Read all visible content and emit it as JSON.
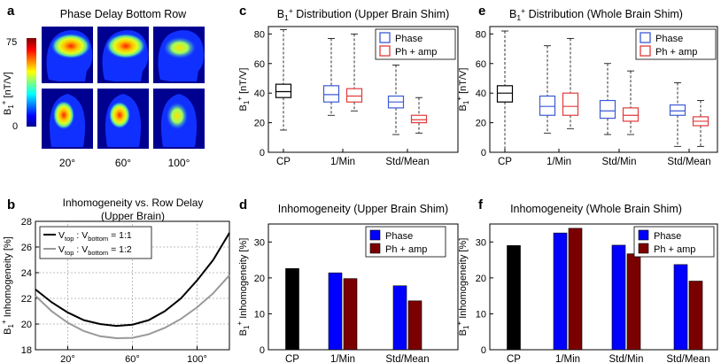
{
  "panel_letters": [
    "a",
    "b",
    "c",
    "d",
    "e",
    "f"
  ],
  "colors": {
    "cp": "#000000",
    "phase": "#0000ff",
    "ph_amp": "#7a0000",
    "box_phase": "#3b5bd6",
    "box_ph_amp": "#e23a3a",
    "curve_1_1": "#000000",
    "curve_1_2": "#999999",
    "grid": "#aaaaaa"
  },
  "panel_a": {
    "title": "Phase Delay Bottom Row",
    "colorbar": {
      "max_label": "75",
      "min_label": "0",
      "label_main": "B",
      "label_sub": "1",
      "label_sup": "+",
      "label_unit": " [nT/V]"
    },
    "columns": [
      "20°",
      "60°",
      "100°"
    ]
  },
  "chart_data": [
    {
      "id": "b",
      "type": "line",
      "title": "Inhomogeneity vs. Row Delay",
      "subtitle": "(Upper Brain)",
      "ylabel": {
        "main": "B",
        "sub": "1",
        "sup": "+",
        "rest": " Inhomogeneity [%]"
      },
      "xlim": [
        0,
        120
      ],
      "ylim": [
        18,
        28
      ],
      "xticks": [
        20,
        60,
        100
      ],
      "xticklabels": [
        "20°",
        "60°",
        "100°"
      ],
      "yticks": [
        18,
        20,
        22,
        24,
        26,
        28
      ],
      "grid": true,
      "legend": [
        {
          "v": "V",
          "top": "top",
          "sep": " : V",
          "bottom": "bottom",
          "ratio": " = 1:1",
          "color": "#000000"
        },
        {
          "v": "V",
          "top": "top",
          "sep": " : V",
          "bottom": "bottom",
          "ratio": " = 1:2",
          "color": "#999999"
        }
      ],
      "series": [
        {
          "name": "1:1",
          "x": [
            0,
            10,
            20,
            30,
            40,
            50,
            60,
            70,
            80,
            90,
            100,
            110,
            120
          ],
          "y": [
            22.7,
            21.7,
            20.9,
            20.3,
            20.0,
            19.85,
            19.95,
            20.3,
            21.0,
            22.0,
            23.4,
            25.0,
            27.1
          ]
        },
        {
          "name": "1:2",
          "x": [
            0,
            10,
            20,
            30,
            40,
            50,
            60,
            70,
            80,
            90,
            100,
            110,
            120
          ],
          "y": [
            22.2,
            21.0,
            20.1,
            19.45,
            19.05,
            18.9,
            18.92,
            19.2,
            19.7,
            20.4,
            21.3,
            22.4,
            23.8
          ]
        }
      ]
    },
    {
      "id": "c",
      "type": "box",
      "title": {
        "main": "B",
        "sub": "1",
        "sup": "+",
        "rest": " Distribution (Upper Brain Shim)"
      },
      "ylabel": {
        "main": "B",
        "sub": "1",
        "sup": "+",
        "rest": " [nT/V]"
      },
      "ylim": [
        0,
        85
      ],
      "yticks": [
        0,
        20,
        40,
        60,
        80
      ],
      "categories": [
        "CP",
        "1/Min",
        "Std/Mean"
      ],
      "legend": [
        "Phase",
        "Ph + amp"
      ],
      "boxes": [
        {
          "group": 0,
          "series": "cp",
          "whisker_low": 15,
          "q1": 37,
          "median": 41,
          "q3": 46,
          "whisker_high": 83
        },
        {
          "group": 1,
          "series": "phase",
          "whisker_low": 25,
          "q1": 34,
          "median": 39,
          "q3": 45,
          "whisker_high": 77
        },
        {
          "group": 1,
          "series": "ph_amp",
          "whisker_low": 28,
          "q1": 34,
          "median": 38,
          "q3": 43,
          "whisker_high": 80
        },
        {
          "group": 2,
          "series": "phase",
          "whisker_low": 12,
          "q1": 30,
          "median": 34,
          "q3": 38,
          "whisker_high": 59
        },
        {
          "group": 2,
          "series": "ph_amp",
          "whisker_low": 13,
          "q1": 20,
          "median": 22,
          "q3": 25,
          "whisker_high": 37
        }
      ]
    },
    {
      "id": "d",
      "type": "bar",
      "title": "Inhomogeneity (Upper Brain Shim)",
      "ylabel": {
        "main": "B",
        "sub": "1",
        "sup": "+",
        "rest": " Inhomogeneity [%]"
      },
      "ylim": [
        0,
        35
      ],
      "yticks": [
        0,
        10,
        20,
        30
      ],
      "categories": [
        "CP",
        "1/Min",
        "Std/Mean"
      ],
      "legend": [
        "Phase",
        "Ph + amp"
      ],
      "bars": [
        {
          "group": 0,
          "series": "cp",
          "value": 22.6
        },
        {
          "group": 1,
          "series": "phase",
          "value": 21.4
        },
        {
          "group": 1,
          "series": "ph_amp",
          "value": 19.8
        },
        {
          "group": 2,
          "series": "phase",
          "value": 17.8
        },
        {
          "group": 2,
          "series": "ph_amp",
          "value": 13.6
        }
      ]
    },
    {
      "id": "e",
      "type": "box",
      "title": {
        "main": "B",
        "sub": "1",
        "sup": "+",
        "rest": " Distribution (Whole Brain Shim)"
      },
      "ylabel": {
        "main": "B",
        "sub": "1",
        "sup": "+",
        "rest": " [nT/V]"
      },
      "ylim": [
        0,
        85
      ],
      "yticks": [
        0,
        20,
        40,
        60,
        80
      ],
      "categories": [
        "CP",
        "1/Min",
        "Std/Min",
        "Std/Mean"
      ],
      "legend": [
        "Phase",
        "Ph + amp"
      ],
      "boxes": [
        {
          "group": 0,
          "series": "cp",
          "whisker_low": 0,
          "q1": 34,
          "median": 40,
          "q3": 45,
          "whisker_high": 82
        },
        {
          "group": 1,
          "series": "phase",
          "whisker_low": 13,
          "q1": 25,
          "median": 31,
          "q3": 38,
          "whisker_high": 72
        },
        {
          "group": 1,
          "series": "ph_amp",
          "whisker_low": 16,
          "q1": 25,
          "median": 31,
          "q3": 40,
          "whisker_high": 77
        },
        {
          "group": 2,
          "series": "phase",
          "whisker_low": 12,
          "q1": 23,
          "median": 28,
          "q3": 35,
          "whisker_high": 60
        },
        {
          "group": 2,
          "series": "ph_amp",
          "whisker_low": 12,
          "q1": 21,
          "median": 25,
          "q3": 30,
          "whisker_high": 55
        },
        {
          "group": 3,
          "series": "phase",
          "whisker_low": 4,
          "q1": 25,
          "median": 28,
          "q3": 32,
          "whisker_high": 47
        },
        {
          "group": 3,
          "series": "ph_amp",
          "whisker_low": 4,
          "q1": 18,
          "median": 21,
          "q3": 24,
          "whisker_high": 35
        }
      ]
    },
    {
      "id": "f",
      "type": "bar",
      "title": "Inhomogeneity (Whole Brain Shim)",
      "ylabel": {
        "main": "B",
        "sub": "1",
        "sup": "+",
        "rest": " Inhomogeneity [%]"
      },
      "ylim": [
        0,
        35
      ],
      "yticks": [
        0,
        10,
        20,
        30
      ],
      "categories": [
        "CP",
        "1/Min",
        "Std/Min",
        "Std/Mean"
      ],
      "legend": [
        "Phase",
        "Ph + amp"
      ],
      "bars": [
        {
          "group": 0,
          "series": "cp",
          "value": 29.0
        },
        {
          "group": 1,
          "series": "phase",
          "value": 32.5
        },
        {
          "group": 1,
          "series": "ph_amp",
          "value": 33.8
        },
        {
          "group": 2,
          "series": "phase",
          "value": 29.1
        },
        {
          "group": 2,
          "series": "ph_amp",
          "value": 26.7
        },
        {
          "group": 3,
          "series": "phase",
          "value": 23.7
        },
        {
          "group": 3,
          "series": "ph_amp",
          "value": 19.1
        }
      ]
    }
  ]
}
